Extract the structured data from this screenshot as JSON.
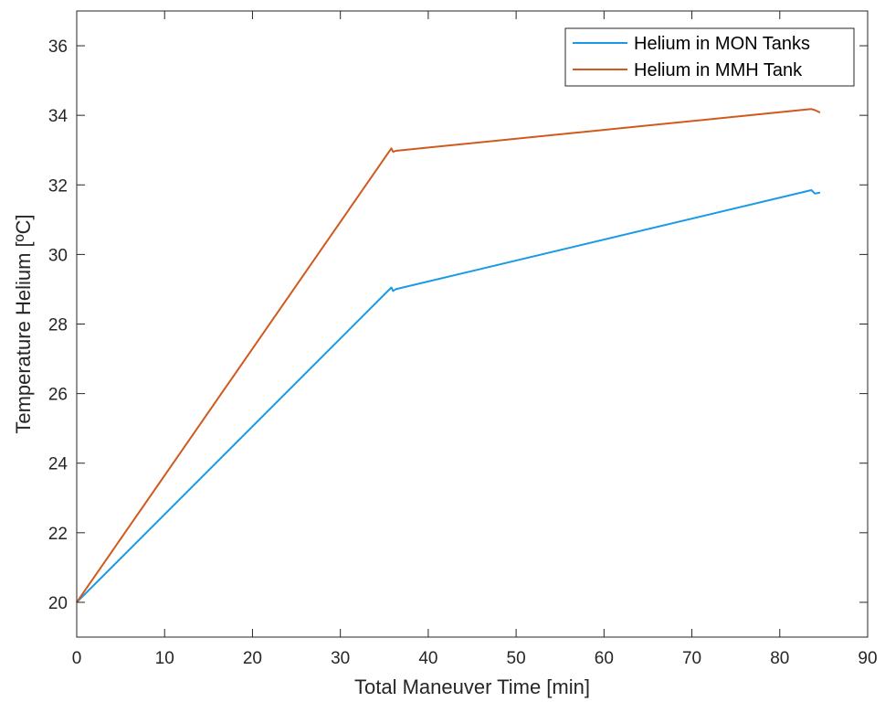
{
  "chart_data": {
    "type": "line",
    "title": "",
    "xlabel": "Total Maneuver Time [min]",
    "ylabel": "Temperature Helium [ºC]",
    "xlim": [
      0,
      90
    ],
    "ylim": [
      19,
      37
    ],
    "xticks": [
      0,
      10,
      20,
      30,
      40,
      50,
      60,
      70,
      80,
      90
    ],
    "yticks": [
      20,
      22,
      24,
      26,
      28,
      30,
      32,
      34,
      36
    ],
    "grid": false,
    "legend_position": "top-right",
    "series": [
      {
        "name": "Helium in MON Tanks",
        "color": "#1a9ae6",
        "x": [
          0,
          35.8,
          36.0,
          36.3,
          83.6,
          84.0,
          84.6
        ],
        "y": [
          20.0,
          29.05,
          28.95,
          29.0,
          31.85,
          31.75,
          31.78
        ]
      },
      {
        "name": "Helium in MMH Tank",
        "color": "#d05a1e",
        "x": [
          0,
          35.8,
          36.0,
          36.3,
          83.6,
          84.0,
          84.6
        ],
        "y": [
          20.0,
          33.05,
          32.95,
          32.98,
          34.18,
          34.15,
          34.08
        ]
      }
    ]
  }
}
